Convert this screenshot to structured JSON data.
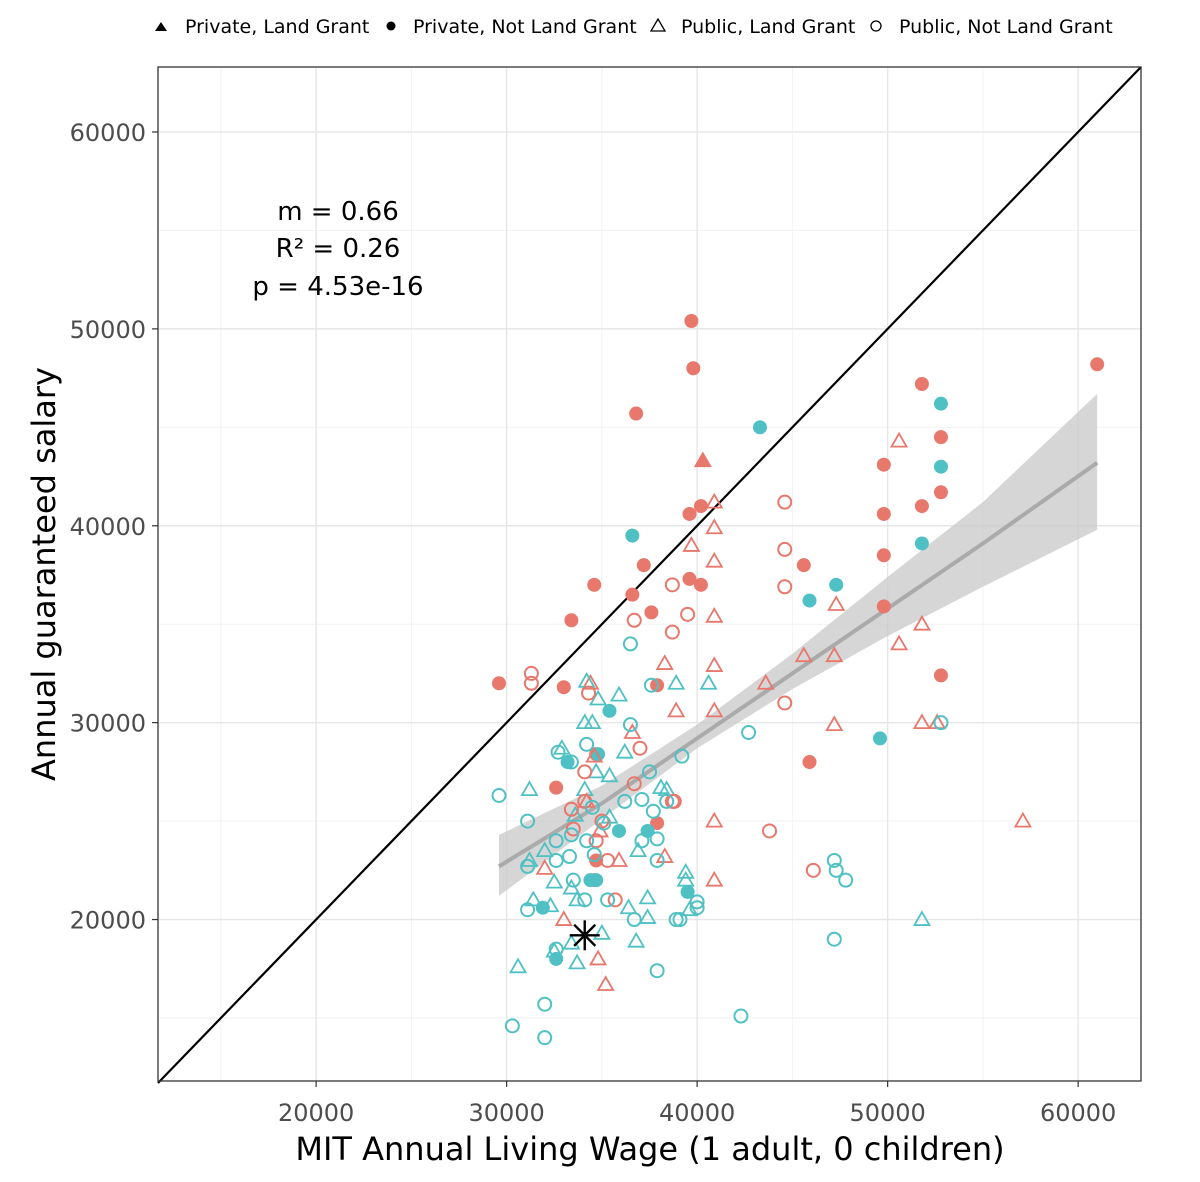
{
  "chart_data": {
    "type": "scatter",
    "title": "",
    "xlabel": "MIT Annual Living Wage (1 adult, 0 children)",
    "ylabel": "Annual guaranteed salary",
    "xlim": [
      11700,
      63300
    ],
    "ylim": [
      11800,
      63300
    ],
    "x_ticks": [
      20000,
      30000,
      40000,
      50000,
      60000
    ],
    "y_ticks": [
      20000,
      30000,
      40000,
      50000,
      60000
    ],
    "x_tick_labels": [
      "20000",
      "30000",
      "40000",
      "50000",
      "60000"
    ],
    "y_tick_labels": [
      "20000",
      "30000",
      "40000",
      "50000",
      "60000"
    ],
    "grid": true,
    "legend": {
      "position": "top",
      "entries": [
        {
          "label": "Private, Land Grant",
          "marker": "filled-triangle"
        },
        {
          "label": "Private, Not Land Grant",
          "marker": "filled-circle"
        },
        {
          "label": "Public, Land Grant",
          "marker": "open-triangle"
        },
        {
          "label": "Public, Not Land Grant",
          "marker": "open-circle"
        }
      ]
    },
    "annotation": [
      "m = 0.66",
      "R² = 0.26",
      "p = 4.53e-16"
    ],
    "identity_line": {
      "from": [
        11700,
        11700
      ],
      "to": [
        63300,
        63300
      ],
      "color": "#000000"
    },
    "fit": {
      "x": [
        29600,
        35000,
        40000,
        45000,
        50000,
        55000,
        61000
      ],
      "y": [
        22700,
        25900,
        29200,
        32500,
        35800,
        39100,
        43200
      ],
      "lower": [
        21200,
        25100,
        28700,
        31700,
        34400,
        36900,
        39800
      ],
      "upper": [
        24300,
        26800,
        29900,
        33500,
        37400,
        41200,
        46700
      ],
      "line_color": "#aaaaaa",
      "band_color": "#c8c8c8"
    },
    "reference_point": {
      "x": 34100,
      "y": 19200,
      "marker": "asterisk",
      "color": "#000000"
    },
    "colors": {
      "red": "#e8776c",
      "teal": "#4fc1c4"
    },
    "series": [
      {
        "name": "Private, Land Grant",
        "marker": "filled-triangle",
        "points": [
          [
            40300,
            43300
          ]
        ]
      },
      {
        "name": "Private, Not Land Grant",
        "marker": "filled-circle",
        "points": [
          [
            39700,
            50400,
            "red"
          ],
          [
            39800,
            48000,
            "red"
          ],
          [
            36800,
            45700,
            "red"
          ],
          [
            40200,
            41000,
            "red"
          ],
          [
            39600,
            40600,
            "red"
          ],
          [
            34600,
            37000,
            "red"
          ],
          [
            37200,
            38000,
            "red"
          ],
          [
            39600,
            37300,
            "red"
          ],
          [
            40200,
            37000,
            "red"
          ],
          [
            36600,
            36500,
            "red"
          ],
          [
            37600,
            35600,
            "red"
          ],
          [
            33400,
            35200,
            "red"
          ],
          [
            29600,
            32000,
            "red"
          ],
          [
            33000,
            31800,
            "red"
          ],
          [
            37900,
            31900,
            "red"
          ],
          [
            34700,
            28400,
            "red"
          ],
          [
            32600,
            26700,
            "red"
          ],
          [
            37900,
            24900,
            "red"
          ],
          [
            34700,
            23000,
            "red"
          ],
          [
            34600,
            22000,
            "red"
          ],
          [
            61000,
            48200,
            "red"
          ],
          [
            51800,
            47200,
            "red"
          ],
          [
            52800,
            44500,
            "red"
          ],
          [
            49800,
            43100,
            "red"
          ],
          [
            52800,
            41700,
            "red"
          ],
          [
            51800,
            41000,
            "red"
          ],
          [
            49800,
            40600,
            "red"
          ],
          [
            49800,
            38500,
            "red"
          ],
          [
            45600,
            38000,
            "red"
          ],
          [
            49800,
            35900,
            "red"
          ],
          [
            52800,
            32400,
            "red"
          ],
          [
            45900,
            28000,
            "red"
          ],
          [
            36600,
            39500,
            "teal"
          ],
          [
            35400,
            30600,
            "teal"
          ],
          [
            33200,
            28000,
            "teal"
          ],
          [
            34800,
            28400,
            "teal"
          ],
          [
            35900,
            24500,
            "teal"
          ],
          [
            37400,
            24500,
            "teal"
          ],
          [
            34400,
            22000,
            "teal"
          ],
          [
            34700,
            22000,
            "teal"
          ],
          [
            39500,
            21400,
            "teal"
          ],
          [
            31900,
            20600,
            "teal"
          ],
          [
            32600,
            18000,
            "teal"
          ],
          [
            43300,
            45000,
            "teal"
          ],
          [
            45900,
            36200,
            "teal"
          ],
          [
            47300,
            37000,
            "teal"
          ],
          [
            49600,
            29200,
            "teal"
          ],
          [
            51800,
            39100,
            "teal"
          ],
          [
            52800,
            46200,
            "teal"
          ],
          [
            52800,
            43000,
            "teal"
          ]
        ]
      },
      {
        "name": "Public, Land Grant",
        "marker": "open-triangle",
        "points": [
          [
            40300,
            43300,
            "red"
          ],
          [
            40900,
            41200,
            "red"
          ],
          [
            50600,
            44300,
            "red"
          ],
          [
            40900,
            39900,
            "red"
          ],
          [
            39700,
            39000,
            "red"
          ],
          [
            40900,
            38200,
            "red"
          ],
          [
            40900,
            35400,
            "red"
          ],
          [
            47300,
            36000,
            "red"
          ],
          [
            51800,
            35000,
            "red"
          ],
          [
            50600,
            34000,
            "red"
          ],
          [
            45600,
            33400,
            "red"
          ],
          [
            47200,
            33400,
            "red"
          ],
          [
            38300,
            33000,
            "red"
          ],
          [
            40900,
            32900,
            "red"
          ],
          [
            43600,
            32000,
            "red"
          ],
          [
            34400,
            32000,
            "red"
          ],
          [
            38900,
            30600,
            "red"
          ],
          [
            40900,
            30600,
            "red"
          ],
          [
            47200,
            29900,
            "red"
          ],
          [
            51800,
            30000,
            "red"
          ],
          [
            52600,
            30000,
            "red"
          ],
          [
            36600,
            29500,
            "red"
          ],
          [
            34600,
            28300,
            "red"
          ],
          [
            34200,
            26000,
            "red"
          ],
          [
            40900,
            25000,
            "red"
          ],
          [
            34900,
            24500,
            "red"
          ],
          [
            38300,
            23200,
            "red"
          ],
          [
            35900,
            23000,
            "red"
          ],
          [
            32000,
            22600,
            "red"
          ],
          [
            40900,
            22000,
            "red"
          ],
          [
            33000,
            20000,
            "red"
          ],
          [
            34800,
            18000,
            "red"
          ],
          [
            35200,
            16700,
            "red"
          ],
          [
            57100,
            25000,
            "red"
          ],
          [
            34200,
            32100,
            "teal"
          ],
          [
            34800,
            31200,
            "teal"
          ],
          [
            35900,
            31400,
            "teal"
          ],
          [
            38900,
            32000,
            "teal"
          ],
          [
            40600,
            32000,
            "teal"
          ],
          [
            34100,
            30000,
            "teal"
          ],
          [
            34500,
            30000,
            "teal"
          ],
          [
            32900,
            28700,
            "teal"
          ],
          [
            36200,
            28500,
            "teal"
          ],
          [
            35400,
            27300,
            "teal"
          ],
          [
            34700,
            27500,
            "teal"
          ],
          [
            31200,
            26600,
            "teal"
          ],
          [
            34100,
            26600,
            "teal"
          ],
          [
            38100,
            26700,
            "teal"
          ],
          [
            38400,
            26600,
            "teal"
          ],
          [
            33600,
            25300,
            "teal"
          ],
          [
            35400,
            25200,
            "teal"
          ],
          [
            32000,
            23500,
            "teal"
          ],
          [
            31200,
            23000,
            "teal"
          ],
          [
            36900,
            23500,
            "teal"
          ],
          [
            32500,
            21900,
            "teal"
          ],
          [
            33400,
            21600,
            "teal"
          ],
          [
            31400,
            21000,
            "teal"
          ],
          [
            32300,
            20700,
            "teal"
          ],
          [
            33700,
            21000,
            "teal"
          ],
          [
            36400,
            20600,
            "teal"
          ],
          [
            37400,
            21100,
            "teal"
          ],
          [
            37400,
            20100,
            "teal"
          ],
          [
            39400,
            22400,
            "teal"
          ],
          [
            39400,
            22000,
            "teal"
          ],
          [
            39600,
            20500,
            "teal"
          ],
          [
            32500,
            18400,
            "teal"
          ],
          [
            33400,
            18800,
            "teal"
          ],
          [
            33700,
            17800,
            "teal"
          ],
          [
            35000,
            19300,
            "teal"
          ],
          [
            36800,
            18900,
            "teal"
          ],
          [
            30600,
            17600,
            "teal"
          ],
          [
            51800,
            20000,
            "teal"
          ]
        ]
      },
      {
        "name": "Public, Not Land Grant",
        "marker": "open-circle",
        "points": [
          [
            31300,
            32500,
            "red"
          ],
          [
            31300,
            32000,
            "red"
          ],
          [
            34300,
            31500,
            "red"
          ],
          [
            36700,
            35200,
            "red"
          ],
          [
            38700,
            37000,
            "red"
          ],
          [
            38700,
            34600,
            "red"
          ],
          [
            39500,
            35500,
            "red"
          ],
          [
            37000,
            28700,
            "red"
          ],
          [
            34100,
            26000,
            "red"
          ],
          [
            33400,
            25600,
            "red"
          ],
          [
            33500,
            24600,
            "red"
          ],
          [
            35000,
            25000,
            "red"
          ],
          [
            36700,
            26900,
            "red"
          ],
          [
            34100,
            27500,
            "red"
          ],
          [
            38800,
            26000,
            "red"
          ],
          [
            38700,
            26000,
            "red"
          ],
          [
            34700,
            24000,
            "red"
          ],
          [
            35300,
            23000,
            "red"
          ],
          [
            35700,
            21000,
            "red"
          ],
          [
            44600,
            41200,
            "red"
          ],
          [
            44600,
            38800,
            "red"
          ],
          [
            44600,
            36900,
            "red"
          ],
          [
            44600,
            31000,
            "red"
          ],
          [
            43800,
            24500,
            "red"
          ],
          [
            46100,
            22500,
            "red"
          ],
          [
            36500,
            34000,
            "teal"
          ],
          [
            37600,
            31900,
            "teal"
          ],
          [
            36500,
            29900,
            "teal"
          ],
          [
            34200,
            28900,
            "teal"
          ],
          [
            32700,
            28500,
            "teal"
          ],
          [
            33400,
            28000,
            "teal"
          ],
          [
            39200,
            28300,
            "teal"
          ],
          [
            37500,
            27500,
            "teal"
          ],
          [
            29600,
            26300,
            "teal"
          ],
          [
            36200,
            26000,
            "teal"
          ],
          [
            37100,
            26100,
            "teal"
          ],
          [
            38400,
            26000,
            "teal"
          ],
          [
            34500,
            25700,
            "teal"
          ],
          [
            37700,
            25500,
            "teal"
          ],
          [
            31100,
            25000,
            "teal"
          ],
          [
            35100,
            24900,
            "teal"
          ],
          [
            33400,
            24300,
            "teal"
          ],
          [
            34200,
            24000,
            "teal"
          ],
          [
            32600,
            24000,
            "teal"
          ],
          [
            37100,
            24000,
            "teal"
          ],
          [
            37900,
            24100,
            "teal"
          ],
          [
            33300,
            23200,
            "teal"
          ],
          [
            34600,
            23300,
            "teal"
          ],
          [
            31100,
            22700,
            "teal"
          ],
          [
            32600,
            23000,
            "teal"
          ],
          [
            37900,
            23000,
            "teal"
          ],
          [
            33500,
            22000,
            "teal"
          ],
          [
            35300,
            21000,
            "teal"
          ],
          [
            34100,
            21000,
            "teal"
          ],
          [
            31100,
            20500,
            "teal"
          ],
          [
            36700,
            20000,
            "teal"
          ],
          [
            38900,
            20000,
            "teal"
          ],
          [
            39100,
            20000,
            "teal"
          ],
          [
            40000,
            20600,
            "teal"
          ],
          [
            40000,
            20900,
            "teal"
          ],
          [
            32600,
            18500,
            "teal"
          ],
          [
            37900,
            17400,
            "teal"
          ],
          [
            32000,
            15700,
            "teal"
          ],
          [
            30300,
            14600,
            "teal"
          ],
          [
            32000,
            14000,
            "teal"
          ],
          [
            42300,
            15100,
            "teal"
          ],
          [
            42700,
            29500,
            "teal"
          ],
          [
            47200,
            23000,
            "teal"
          ],
          [
            47300,
            22500,
            "teal"
          ],
          [
            47800,
            22000,
            "teal"
          ],
          [
            47200,
            19000,
            "teal"
          ],
          [
            52800,
            30000,
            "teal"
          ]
        ]
      }
    ]
  }
}
